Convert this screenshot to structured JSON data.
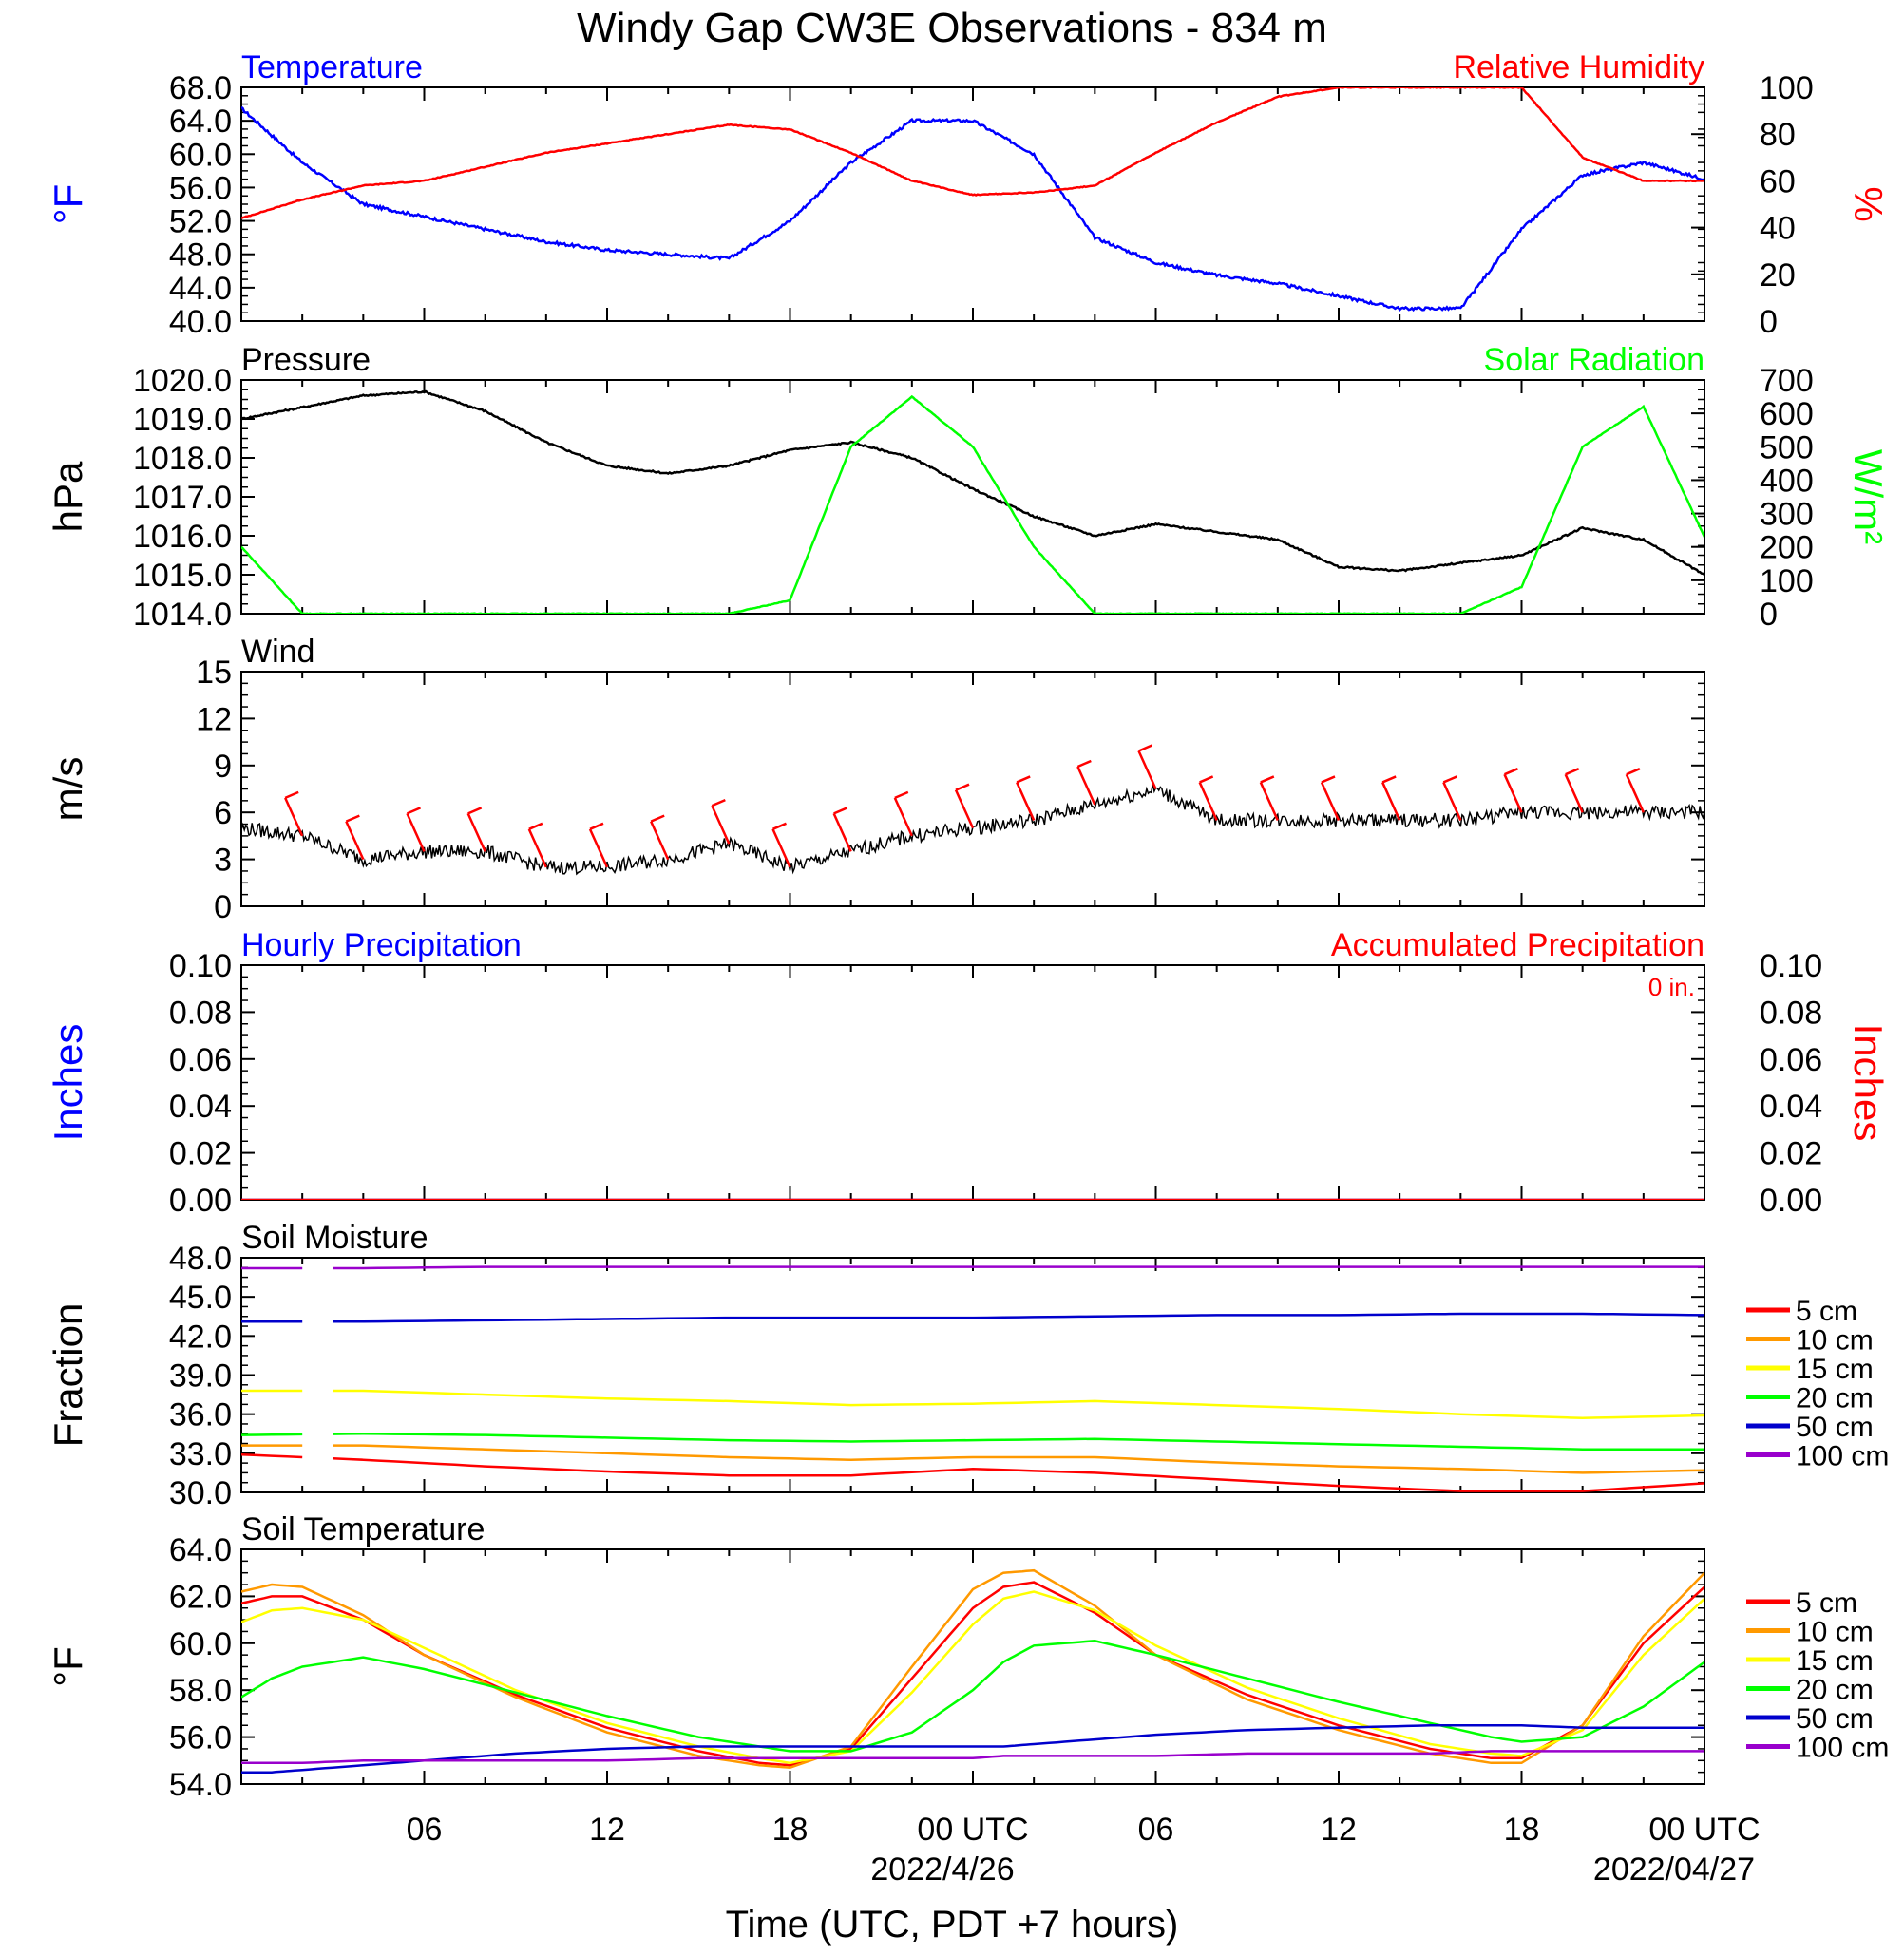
{
  "title": "Windy Gap CW3E Observations - 834 m",
  "xlabel": "Time (UTC, PDT +7 hours)",
  "x_ticks": [
    "06",
    "12",
    "18",
    "00 UTC",
    "06",
    "12",
    "18",
    "00 UTC"
  ],
  "x_dates": [
    "2022/4/26",
    "2022/04/27"
  ],
  "colors": {
    "blue": "#0000ff",
    "red": "#ff0000",
    "green": "#00ff00",
    "black": "#000000",
    "orange": "#ff9900",
    "yellow": "#ffff00",
    "purple": "#9900cc",
    "navy": "#0000cc"
  },
  "chart_data": [
    {
      "type": "line",
      "title_left": "Temperature",
      "title_right": "Relative Humidity",
      "ylabel_left": "°F",
      "ylabel_right": "%",
      "ylim_left": [
        40,
        68
      ],
      "ylim_right": [
        0,
        100
      ],
      "yticks_left": [
        "40.0",
        "44.0",
        "48.0",
        "52.0",
        "56.0",
        "60.0",
        "64.0",
        "68.0"
      ],
      "yticks_right": [
        "0",
        "20",
        "40",
        "60",
        "80",
        "100"
      ],
      "x_hours": [
        0,
        2,
        4,
        6,
        8,
        10,
        12,
        14,
        16,
        18,
        20,
        22,
        24,
        26,
        28,
        30,
        32,
        34,
        36,
        38,
        40,
        42,
        44,
        46,
        48
      ],
      "series": [
        {
          "name": "Temperature",
          "axis": "left",
          "color": "#0000ff",
          "values": [
            65.5,
            59,
            54,
            52.5,
            51,
            49.5,
            48.5,
            48,
            47.5,
            52,
            59,
            64,
            64,
            60,
            50,
            47,
            45.5,
            44.5,
            43,
            41.5,
            41.5,
            51,
            57.5,
            59,
            57
          ]
        },
        {
          "name": "Relative Humidity",
          "axis": "right",
          "color": "#ff0000",
          "values": [
            44,
            52,
            58,
            60,
            66,
            72,
            76,
            80,
            84,
            82,
            72,
            60,
            54,
            55,
            58,
            72,
            85,
            96,
            100,
            100,
            100,
            100,
            70,
            60,
            60
          ]
        }
      ]
    },
    {
      "type": "line",
      "title_left": "Pressure",
      "title_right": "Solar Radiation",
      "ylabel_left": "hPa",
      "ylabel_right": "W/m²",
      "ylim_left": [
        1014,
        1020
      ],
      "ylim_right": [
        0,
        700
      ],
      "yticks_left": [
        "1014.0",
        "1015.0",
        "1016.0",
        "1017.0",
        "1018.0",
        "1019.0",
        "1020.0"
      ],
      "yticks_right": [
        "0",
        "100",
        "200",
        "300",
        "400",
        "500",
        "600",
        "700"
      ],
      "x_hours": [
        0,
        2,
        4,
        6,
        8,
        10,
        12,
        14,
        16,
        18,
        20,
        22,
        24,
        26,
        28,
        30,
        32,
        34,
        36,
        38,
        40,
        42,
        44,
        46,
        48
      ],
      "series": [
        {
          "name": "Pressure",
          "axis": "left",
          "color": "#000000",
          "values": [
            1019,
            1019.3,
            1019.6,
            1019.7,
            1019.2,
            1018.4,
            1017.8,
            1017.6,
            1017.8,
            1018.2,
            1018.4,
            1018,
            1017.2,
            1016.5,
            1016,
            1016.3,
            1016.1,
            1015.9,
            1015.2,
            1015.1,
            1015.3,
            1015.5,
            1016.2,
            1015.9,
            1015
          ]
        },
        {
          "name": "Solar Radiation",
          "axis": "right",
          "color": "#00ff00",
          "values": [
            200,
            0,
            0,
            0,
            0,
            0,
            0,
            0,
            0,
            40,
            500,
            650,
            500,
            200,
            0,
            0,
            0,
            0,
            0,
            0,
            0,
            80,
            500,
            620,
            230
          ]
        }
      ]
    },
    {
      "type": "line",
      "title_left": "Wind",
      "ylabel_left": "m/s",
      "ylim_left": [
        0,
        15
      ],
      "yticks_left": [
        "0",
        "3",
        "6",
        "9",
        "12",
        "15"
      ],
      "x_hours": [
        0,
        2,
        4,
        6,
        8,
        10,
        12,
        14,
        16,
        18,
        20,
        22,
        24,
        26,
        28,
        30,
        32,
        34,
        36,
        38,
        40,
        42,
        44,
        46,
        48
      ],
      "series": [
        {
          "name": "Wind",
          "axis": "left",
          "color": "#000000",
          "values": [
            5,
            4.5,
            3,
            3.5,
            3.5,
            2.5,
            2.5,
            3,
            4,
            2.5,
            3.5,
            4.5,
            5,
            5.5,
            6.5,
            7.5,
            5.5,
            5.5,
            5.5,
            5.5,
            5.5,
            6,
            6,
            6,
            6
          ]
        },
        {
          "name": "Wind barbs",
          "axis": "left",
          "color": "#ff0000",
          "barbs": true,
          "values": [
            5,
            4.5,
            3,
            3.5,
            3.5,
            2.5,
            2.5,
            3,
            4,
            2.5,
            3.5,
            4.5,
            5,
            5.5,
            6.5,
            7.5,
            5.5,
            5.5,
            5.5,
            5.5,
            5.5,
            6,
            6,
            6,
            6
          ]
        }
      ]
    },
    {
      "type": "line",
      "title_left": "Hourly Precipitation",
      "title_right": "Accumulated Precipitation",
      "annotation": "0 in.",
      "ylabel_left": "Inches",
      "ylabel_right": "Inches",
      "ylim_left": [
        0,
        0.1
      ],
      "ylim_right": [
        0,
        0.1
      ],
      "yticks_left": [
        "0.00",
        "0.02",
        "0.04",
        "0.06",
        "0.08",
        "0.10"
      ],
      "yticks_right": [
        "0.00",
        "0.02",
        "0.04",
        "0.06",
        "0.08",
        "0.10"
      ],
      "x_hours": [
        0,
        48
      ],
      "series": [
        {
          "name": "Hourly Precipitation",
          "axis": "left",
          "color": "#0000ff",
          "values": [
            0,
            0
          ]
        },
        {
          "name": "Accumulated Precipitation",
          "axis": "right",
          "color": "#ff0000",
          "values": [
            0,
            0
          ]
        }
      ]
    },
    {
      "type": "line",
      "title_left": "Soil Moisture",
      "ylabel_left": "Fraction",
      "ylim_left": [
        30,
        48
      ],
      "yticks_left": [
        "30.0",
        "33.0",
        "36.0",
        "39.0",
        "42.0",
        "45.0",
        "48.0"
      ],
      "legend": [
        "5 cm",
        "10 cm",
        "15 cm",
        "20 cm",
        "50 cm",
        "100 cm"
      ],
      "x_hours": [
        0,
        4,
        8,
        12,
        16,
        20,
        24,
        28,
        32,
        36,
        40,
        44,
        48
      ],
      "series": [
        {
          "name": "5 cm",
          "color": "#ff0000",
          "values": [
            32.9,
            32.5,
            32,
            31.6,
            31.3,
            31.3,
            31.8,
            31.5,
            31,
            30.5,
            30.1,
            30.1,
            30.7
          ]
        },
        {
          "name": "10 cm",
          "color": "#ff9900",
          "values": [
            33.6,
            33.6,
            33.3,
            33,
            32.7,
            32.5,
            32.7,
            32.7,
            32.3,
            32,
            31.8,
            31.5,
            31.7
          ]
        },
        {
          "name": "15 cm",
          "color": "#ffff00",
          "values": [
            37.8,
            37.8,
            37.5,
            37.2,
            37,
            36.7,
            36.8,
            37,
            36.7,
            36.4,
            36,
            35.7,
            35.9
          ]
        },
        {
          "name": "20 cm",
          "color": "#00ff00",
          "values": [
            34.4,
            34.5,
            34.4,
            34.2,
            34,
            33.9,
            34,
            34.1,
            33.9,
            33.7,
            33.5,
            33.3,
            33.3
          ]
        },
        {
          "name": "50 cm",
          "color": "#0000cc",
          "values": [
            43.1,
            43.1,
            43.2,
            43.3,
            43.4,
            43.4,
            43.4,
            43.5,
            43.6,
            43.6,
            43.7,
            43.7,
            43.6
          ]
        },
        {
          "name": "100 cm",
          "color": "#9900cc",
          "values": [
            47.2,
            47.2,
            47.3,
            47.3,
            47.3,
            47.3,
            47.3,
            47.3,
            47.3,
            47.3,
            47.3,
            47.3,
            47.3
          ]
        }
      ],
      "gap_hours": [
        2.2,
        3.0
      ]
    },
    {
      "type": "line",
      "title_left": "Soil Temperature",
      "ylabel_left": "°F",
      "ylim_left": [
        54,
        64
      ],
      "yticks_left": [
        "54.0",
        "56.0",
        "58.0",
        "60.0",
        "62.0",
        "64.0"
      ],
      "legend": [
        "5 cm",
        "10 cm",
        "15 cm",
        "20 cm",
        "50 cm",
        "100 cm"
      ],
      "x_hours": [
        0,
        1,
        2,
        4,
        6,
        9,
        12,
        15,
        17,
        18,
        20,
        22,
        24,
        25,
        26,
        28,
        30,
        33,
        36,
        39,
        41,
        42,
        44,
        46,
        48
      ],
      "series": [
        {
          "name": "5 cm",
          "color": "#ff0000",
          "values": [
            61.7,
            62,
            62,
            61,
            59.5,
            57.8,
            56.4,
            55.4,
            54.9,
            54.8,
            55.5,
            58.5,
            61.5,
            62.4,
            62.6,
            61.3,
            59.5,
            57.8,
            56.5,
            55.5,
            55.1,
            55.1,
            56.5,
            60,
            62.4
          ]
        },
        {
          "name": "10 cm",
          "color": "#ff9900",
          "values": [
            62.2,
            62.5,
            62.4,
            61.2,
            59.5,
            57.7,
            56.2,
            55.2,
            54.8,
            54.7,
            55.6,
            59,
            62.3,
            63,
            63.1,
            61.6,
            59.5,
            57.6,
            56.3,
            55.3,
            54.9,
            54.9,
            56.5,
            60.3,
            63
          ]
        },
        {
          "name": "15 cm",
          "color": "#ffff00",
          "values": [
            60.9,
            61.4,
            61.5,
            61,
            59.8,
            58,
            56.6,
            55.6,
            55.1,
            54.9,
            55.4,
            57.9,
            60.8,
            61.9,
            62.2,
            61.4,
            59.9,
            58.1,
            56.8,
            55.7,
            55.3,
            55.2,
            56.3,
            59.5,
            61.9
          ]
        },
        {
          "name": "20 cm",
          "color": "#00ff00",
          "values": [
            57.7,
            58.5,
            59,
            59.4,
            58.9,
            57.9,
            56.9,
            56,
            55.6,
            55.4,
            55.4,
            56.2,
            58,
            59.2,
            59.9,
            60.1,
            59.5,
            58.5,
            57.5,
            56.6,
            56,
            55.8,
            56,
            57.3,
            59.2
          ]
        },
        {
          "name": "50 cm",
          "color": "#0000cc",
          "values": [
            54.5,
            54.5,
            54.6,
            54.8,
            55,
            55.3,
            55.5,
            55.6,
            55.6,
            55.6,
            55.6,
            55.6,
            55.6,
            55.6,
            55.7,
            55.9,
            56.1,
            56.3,
            56.4,
            56.5,
            56.5,
            56.5,
            56.4,
            56.4,
            56.4
          ]
        },
        {
          "name": "100 cm",
          "color": "#9900cc",
          "values": [
            54.9,
            54.9,
            54.9,
            55,
            55,
            55,
            55,
            55.1,
            55.1,
            55.1,
            55.1,
            55.1,
            55.1,
            55.2,
            55.2,
            55.2,
            55.2,
            55.3,
            55.3,
            55.3,
            55.4,
            55.4,
            55.4,
            55.4,
            55.4
          ]
        }
      ]
    }
  ]
}
